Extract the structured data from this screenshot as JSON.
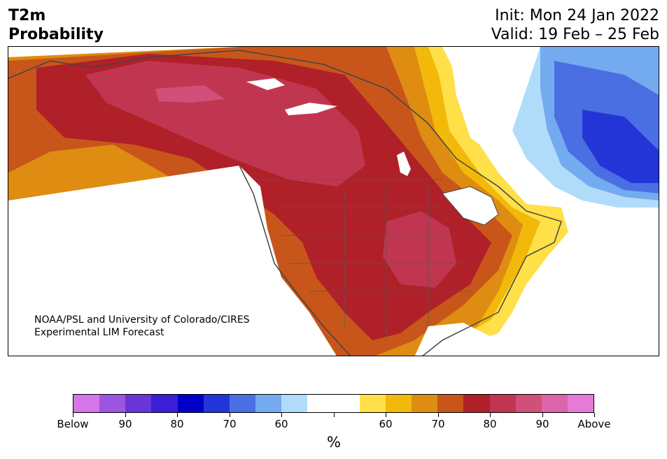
{
  "header": {
    "title_line1": "T2m",
    "title_line2": "Probability",
    "init": "Init: Mon 24 Jan 2022",
    "valid": "Valid: 19 Feb – 25 Feb"
  },
  "map": {
    "region": "North America",
    "credit_line1": "NOAA/PSL and University of Colorado/CIRES",
    "credit_line2": "Experimental LIM Forecast"
  },
  "colorbar": {
    "unit": "%",
    "colors": [
      "#d475e8",
      "#9b55de",
      "#6a35d8",
      "#3a1fd6",
      "#0000c8",
      "#2435d8",
      "#4a6fe2",
      "#74aaf0",
      "#b0dcfa",
      "#ffffff",
      "#ffffff",
      "#ffe048",
      "#f2b80a",
      "#de8c12",
      "#c8561a",
      "#b02028",
      "#c03650",
      "#d0507a",
      "#dc64aa",
      "#e67ad8"
    ],
    "tick_labels": [
      "Below",
      "90",
      "80",
      "70",
      "60",
      "",
      "60",
      "70",
      "80",
      "90",
      "Above"
    ]
  }
}
